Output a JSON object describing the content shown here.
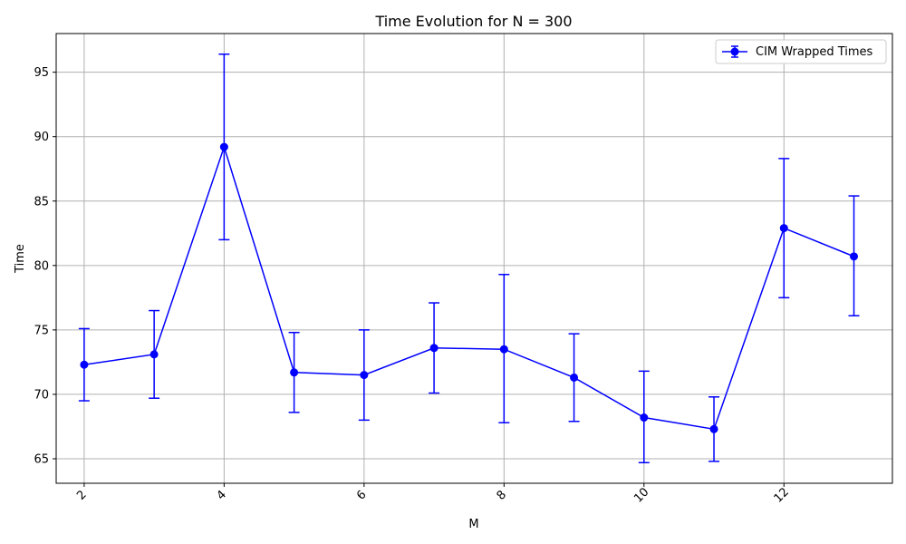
{
  "chart_data": {
    "type": "line",
    "title": "Time Evolution for N = 300",
    "xlabel": "M",
    "ylabel": "Time",
    "xlim": [
      1.6,
      13.55
    ],
    "ylim": [
      63.1,
      98.0
    ],
    "xticks": [
      2,
      4,
      6,
      8,
      10,
      12
    ],
    "yticks": [
      65,
      70,
      75,
      80,
      85,
      90,
      95
    ],
    "xtick_rotation": 45,
    "grid": true,
    "legend_position": "top-right",
    "colors": {
      "series": "#0000ff",
      "grid": "#b0b0b0",
      "axes": "#000000"
    },
    "series": [
      {
        "name": "CIM Wrapped Times",
        "x": [
          2,
          3,
          4,
          5,
          6,
          7,
          8,
          9,
          10,
          11,
          12,
          13
        ],
        "y": [
          72.3,
          73.1,
          89.2,
          71.7,
          71.5,
          73.6,
          73.5,
          71.3,
          68.2,
          67.3,
          82.9,
          80.7
        ],
        "err_low": [
          69.5,
          69.7,
          82.0,
          68.6,
          68.0,
          70.1,
          67.8,
          67.9,
          64.7,
          64.8,
          77.5,
          76.1
        ],
        "err_high": [
          75.1,
          76.5,
          96.4,
          74.8,
          75.0,
          77.1,
          79.3,
          74.7,
          71.8,
          69.8,
          88.3,
          85.4
        ]
      }
    ]
  }
}
